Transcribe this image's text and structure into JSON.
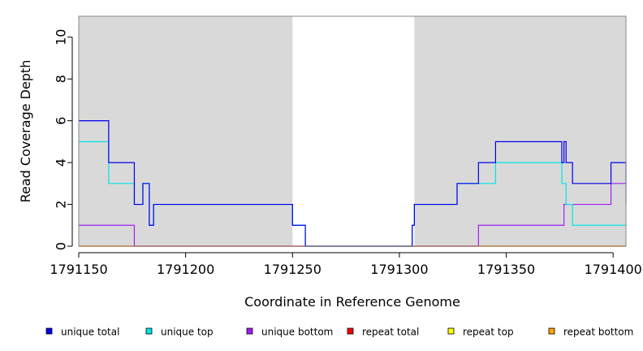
{
  "chart_data": {
    "type": "line",
    "title": "",
    "xlabel": "Coordinate in Reference Genome",
    "ylabel": "Read Coverage Depth",
    "xlim": [
      1791150,
      1791406
    ],
    "ylim": [
      0,
      11
    ],
    "x_ticks": [
      1791150,
      1791200,
      1791250,
      1791300,
      1791350,
      1791400
    ],
    "y_ticks": [
      0,
      2,
      4,
      6,
      8,
      10
    ],
    "shaded_regions": [
      {
        "from": 1791150,
        "to": 1791250,
        "color": "#d9d9d9"
      },
      {
        "from": 1791307,
        "to": 1791406,
        "color": "#d9d9d9"
      }
    ],
    "legend_placement": "bottom",
    "series": [
      {
        "name": "unique total",
        "color": "#0000ee",
        "x": [
          1791150,
          1791164,
          1791164,
          1791176,
          1791176,
          1791180,
          1791180,
          1791183,
          1791183,
          1791185,
          1791185,
          1791250,
          1791250,
          1791256,
          1791256,
          1791306,
          1791306,
          1791307,
          1791307,
          1791327,
          1791327,
          1791337,
          1791337,
          1791345,
          1791345,
          1791376,
          1791376,
          1791377,
          1791377,
          1791378,
          1791378,
          1791381,
          1791381,
          1791399,
          1791399,
          1791406,
          1791406
        ],
        "y": [
          6,
          6,
          4,
          4,
          2,
          2,
          3,
          3,
          1,
          1,
          2,
          2,
          1,
          1,
          0,
          0,
          1,
          1,
          2,
          2,
          3,
          3,
          4,
          4,
          5,
          5,
          4,
          4,
          5,
          5,
          4,
          4,
          3,
          3,
          4,
          4,
          3
        ]
      },
      {
        "name": "unique top",
        "color": "#00e5e5",
        "x": [
          1791150,
          1791164,
          1791164,
          1791176,
          1791176,
          1791180,
          1791180,
          1791183,
          1791183,
          1791185,
          1791185,
          1791250,
          1791250,
          1791256,
          1791256,
          1791306,
          1791306,
          1791307,
          1791307,
          1791327,
          1791327,
          1791345,
          1791345,
          1791376,
          1791376,
          1791378,
          1791378,
          1791381,
          1791381,
          1791406
        ],
        "y": [
          5,
          5,
          3,
          3,
          2,
          2,
          3,
          3,
          1,
          1,
          2,
          2,
          1,
          1,
          0,
          0,
          1,
          1,
          2,
          2,
          3,
          3,
          4,
          4,
          3,
          3,
          2,
          2,
          1,
          1
        ]
      },
      {
        "name": "unique bottom",
        "color": "#a020f0",
        "x": [
          1791150,
          1791176,
          1791176,
          1791337,
          1791337,
          1791377,
          1791377,
          1791399,
          1791399,
          1791406,
          1791406
        ],
        "y": [
          1,
          1,
          0,
          0,
          1,
          1,
          2,
          2,
          3,
          3,
          2
        ]
      },
      {
        "name": "repeat total",
        "color": "#ff0000",
        "x": [
          1791150,
          1791406
        ],
        "y": [
          0,
          0
        ]
      },
      {
        "name": "repeat top",
        "color": "#ffff00",
        "x": [
          1791150,
          1791406
        ],
        "y": [
          0,
          0
        ]
      },
      {
        "name": "repeat bottom",
        "color": "#ffa500",
        "x": [
          1791150,
          1791406
        ],
        "y": [
          0,
          0
        ]
      }
    ]
  }
}
